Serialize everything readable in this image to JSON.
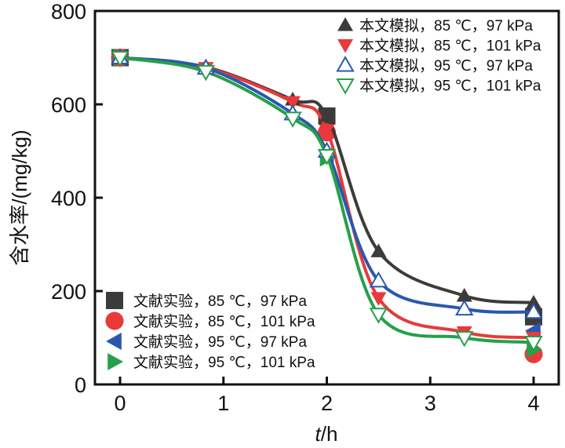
{
  "chart_data": {
    "type": "line",
    "xlabel_italic": "t",
    "xlabel_rest": "/h",
    "ylabel": "含水率/(mg/kg)",
    "xlim": [
      -0.25,
      4.25
    ],
    "ylim": [
      0,
      800
    ],
    "xticks": [
      "0",
      "1",
      "2",
      "3",
      "4"
    ],
    "yticks": [
      "0",
      "200",
      "400",
      "600",
      "800"
    ],
    "grid": false,
    "simulation_series": [
      {
        "name": "本文模拟，85 ℃，97 kPa",
        "color": "#3d3a3a",
        "marker": "triangle-up-filled",
        "x": [
          0,
          0.83,
          1.67,
          2,
          2.5,
          3.33,
          4
        ],
        "y": [
          700,
          680,
          610,
          575,
          285,
          190,
          175
        ]
      },
      {
        "name": "本文模拟，85 ℃，101 kPa",
        "color": "#e8393b",
        "marker": "triangle-down-filled",
        "x": [
          0,
          0.83,
          1.67,
          2,
          2.5,
          3.33,
          4
        ],
        "y": [
          700,
          678,
          605,
          545,
          185,
          112,
          100
        ]
      },
      {
        "name": "本文模拟，95 ℃，97 kPa",
        "color": "#2a58b0",
        "marker": "triangle-up-open",
        "x": [
          0,
          0.83,
          1.67,
          2,
          2.5,
          3.33,
          4
        ],
        "y": [
          700,
          678,
          580,
          500,
          222,
          162,
          155
        ]
      },
      {
        "name": "本文模拟，95 ℃，101 kPa",
        "color": "#26a04a",
        "marker": "triangle-down-open",
        "x": [
          0,
          0.83,
          1.67,
          2,
          2.5,
          3.33,
          4
        ],
        "y": [
          700,
          670,
          570,
          490,
          150,
          100,
          90
        ]
      }
    ],
    "experiment_series": [
      {
        "name": "文献实验，85 ℃，97 kPa",
        "color": "#3d3a3a",
        "marker": "square",
        "x": [
          0,
          2,
          4
        ],
        "y": [
          700,
          575,
          145
        ]
      },
      {
        "name": "文献实验，85 ℃，101 kPa",
        "color": "#e8393b",
        "marker": "circle",
        "x": [
          0,
          2,
          4
        ],
        "y": [
          700,
          540,
          65
        ]
      },
      {
        "name": "文献实验，95 ℃，97 kPa",
        "color": "#2a58b0",
        "marker": "triangle-left",
        "x": [
          0,
          2,
          4
        ],
        "y": [
          700,
          490,
          115
        ]
      },
      {
        "name": "文献实验，95 ℃，101 kPa",
        "color": "#26a04a",
        "marker": "triangle-right",
        "x": [
          0,
          2,
          4
        ],
        "y": [
          700,
          485,
          75
        ]
      }
    ],
    "legend_simulation_placement": "top-right",
    "legend_experiment_placement": "bottom-left"
  }
}
